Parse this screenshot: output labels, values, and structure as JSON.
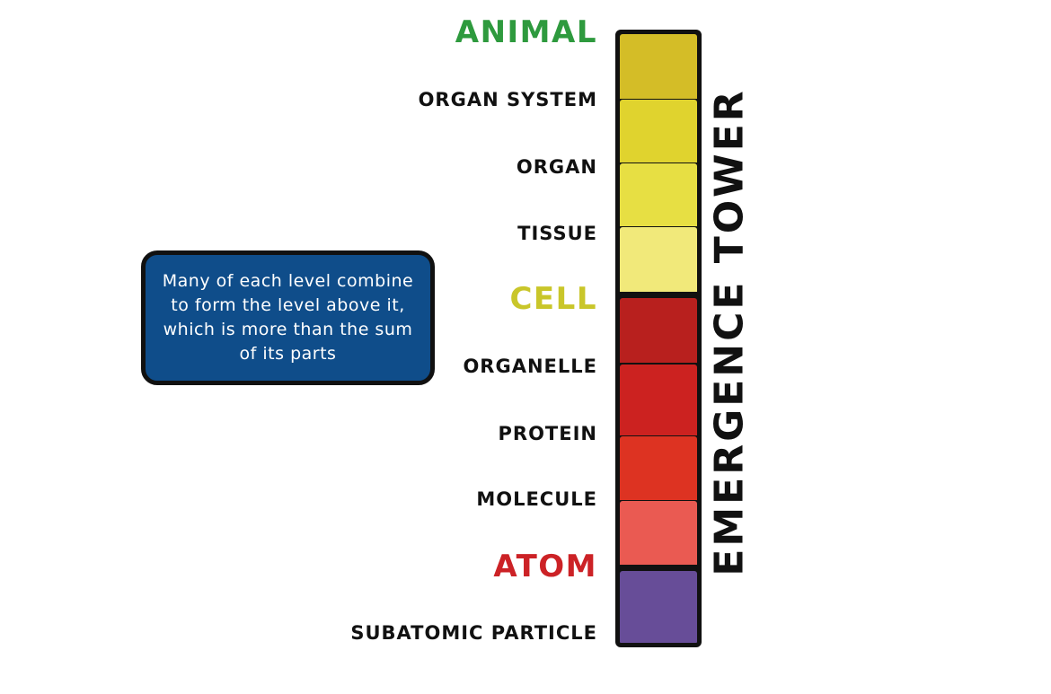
{
  "levels": [
    {
      "label": "ANIMAL",
      "kind": "major",
      "color": "#2e9a3e"
    },
    {
      "label": "ORGAN SYSTEM",
      "kind": "minor",
      "color": "#d4bd27"
    },
    {
      "label": "ORGAN",
      "kind": "minor",
      "color": "#e0d32e"
    },
    {
      "label": "TISSUE",
      "kind": "minor",
      "color": "#e7df43"
    },
    {
      "label": "CELL",
      "kind": "major",
      "color": "#f1e97a"
    },
    {
      "label": "ORGANELLE",
      "kind": "minor",
      "color": "#b8201e"
    },
    {
      "label": "PROTEIN",
      "kind": "minor",
      "color": "#cc2220"
    },
    {
      "label": "MOLECULE",
      "kind": "minor",
      "color": "#dd3322"
    },
    {
      "label": "ATOM",
      "kind": "major",
      "color": "#ea5a52"
    },
    {
      "label": "SUBATOMIC PARTICLE",
      "kind": "minor",
      "color": "#674d98"
    }
  ],
  "label_colors": {
    "ANIMAL": "#2e9a3e",
    "CELL": "#c9c62a",
    "ATOM": "#cc2226"
  },
  "tower_title": "EMERGENCE TOWER",
  "note": {
    "text": "Many of each level combine to form the level above it, which is more than the sum of its parts",
    "background": "#0f4d8a"
  }
}
